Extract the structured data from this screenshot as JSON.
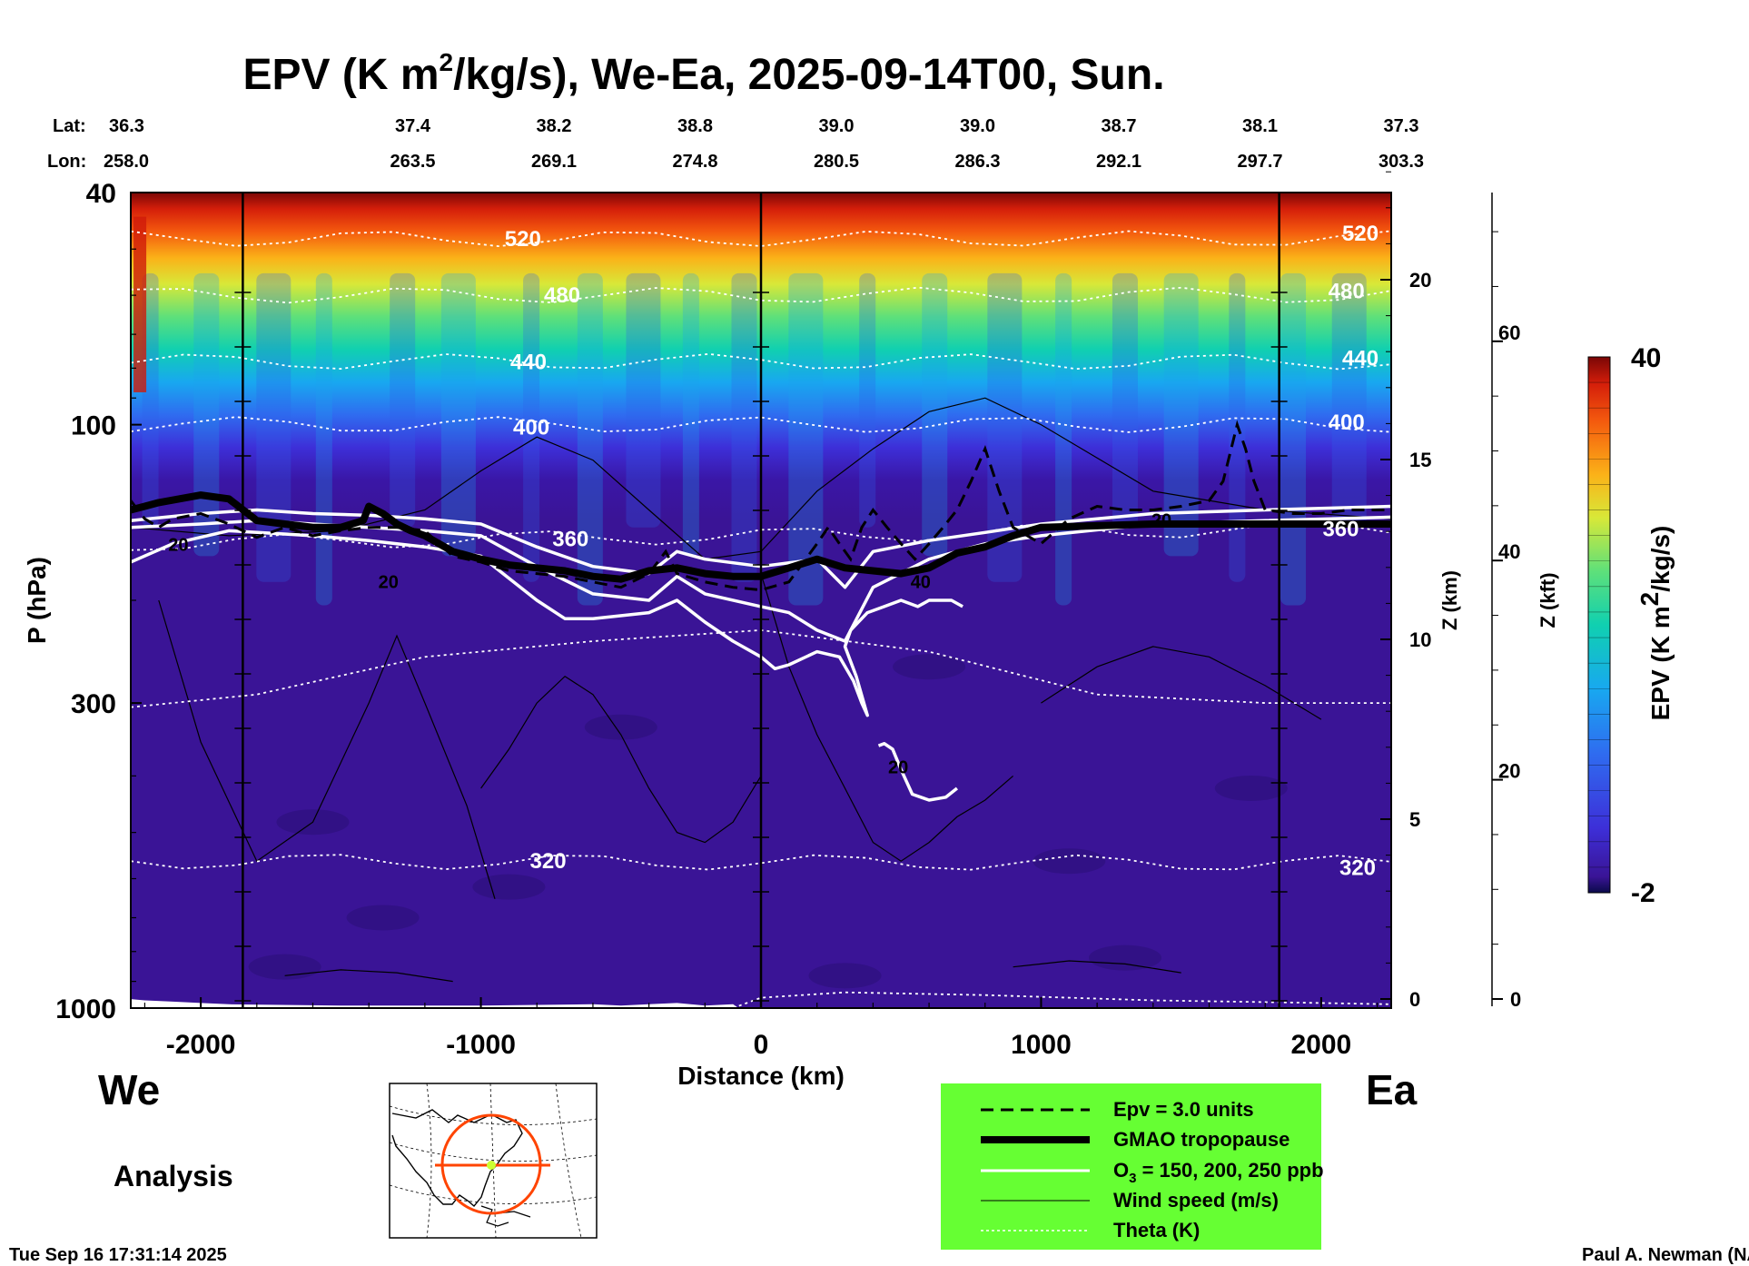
{
  "chart_data": {
    "type": "heatmap",
    "title": "EPV (K m",
    "title_sup": "2",
    "title_rest": "/kg/s), We-Ea, 2025-09-14T00, Sun.",
    "xlabel": "Distance (km)",
    "ylabel": "P (hPa)",
    "y2label": "Z (km)",
    "y3label": "Z (kft)",
    "xlim": [
      -2250,
      2250
    ],
    "ylim_hpa": [
      1000,
      40
    ],
    "x_ticks": [
      -2000,
      -1000,
      0,
      1000,
      2000
    ],
    "x_tick_labels": [
      "-2000",
      "-1000",
      "0",
      "1000",
      "2000"
    ],
    "y_ticks": [
      40,
      100,
      300,
      1000
    ],
    "y_tick_labels": [
      "40",
      "100",
      "300",
      "1000"
    ],
    "zkm_ticks": [
      0,
      5,
      10,
      15,
      20
    ],
    "zkm_tick_labels": [
      "0",
      "5",
      "10",
      "15",
      "20"
    ],
    "zkft_ticks": [
      0,
      20,
      40,
      60
    ],
    "zkft_tick_labels": [
      "0",
      "20",
      "40",
      "60"
    ],
    "lat_label": "Lat:",
    "lon_label": "Lon:",
    "lat": [
      "36.3",
      "37.4",
      "38.2",
      "38.8",
      "39.0",
      "39.0",
      "38.7",
      "38.1",
      "37.3"
    ],
    "lon": [
      "258.0",
      "263.5",
      "269.1",
      "274.8",
      "280.5",
      "286.3",
      "292.1",
      "297.7",
      "303.3"
    ],
    "colorbar": {
      "label": "EPV (K m",
      "label_sup": "2",
      "label_rest": "/kg/s)",
      "min": -2,
      "max": 40,
      "min_label": "-2",
      "max_label": "40"
    },
    "theta_contours": [
      {
        "value": 320,
        "label": "320",
        "p_west": 560,
        "p_east": 565
      },
      {
        "value": 360,
        "label": "360",
        "p_west": 160,
        "p_east": 150
      },
      {
        "value": 400,
        "label": "400",
        "p_west": 100,
        "p_east": 100
      },
      {
        "value": 440,
        "label": "440",
        "p_west": 78,
        "p_east": 78
      },
      {
        "value": 480,
        "label": "480",
        "p_west": 60,
        "p_east": 60
      },
      {
        "value": 520,
        "label": "520",
        "p_west": 48,
        "p_east": 48
      }
    ],
    "theta_labels": [
      {
        "text": "520",
        "x": -850,
        "p": 48
      },
      {
        "text": "480",
        "x": -710,
        "p": 60
      },
      {
        "text": "440",
        "x": -830,
        "p": 78
      },
      {
        "text": "400",
        "x": -820,
        "p": 101
      },
      {
        "text": "360",
        "x": -680,
        "p": 157
      },
      {
        "text": "320",
        "x": -760,
        "p": 560
      },
      {
        "text": "520",
        "x": 2140,
        "p": 47
      },
      {
        "text": "480",
        "x": 2090,
        "p": 59
      },
      {
        "text": "440",
        "x": 2140,
        "p": 77
      },
      {
        "text": "400",
        "x": 2090,
        "p": 99
      },
      {
        "text": "360",
        "x": 2070,
        "p": 151
      },
      {
        "text": "320",
        "x": 2130,
        "p": 575
      }
    ],
    "wind_labels": [
      {
        "text": "20",
        "x": -2080,
        "p": 160
      },
      {
        "text": "20",
        "x": -1330,
        "p": 185
      },
      {
        "text": "40",
        "x": 570,
        "p": 185
      },
      {
        "text": "20",
        "x": 1430,
        "p": 145
      },
      {
        "text": "20",
        "x": 490,
        "p": 385
      }
    ],
    "tropopause": {
      "x": [
        -2250,
        -2200,
        -2150,
        -2000,
        -1900,
        -1800,
        -1700,
        -1600,
        -1500,
        -1420,
        -1400,
        -1350,
        -1300,
        -1250,
        -1200,
        -1100,
        -1000,
        -900,
        -800,
        -700,
        -600,
        -500,
        -400,
        -300,
        -200,
        -100,
        0,
        100,
        200,
        300,
        400,
        500,
        600,
        700,
        800,
        900,
        1000,
        1200,
        1400,
        1600,
        1800,
        2000,
        2250
      ],
      "p": [
        140,
        138,
        136,
        132,
        134,
        146,
        148,
        150,
        150,
        146,
        138,
        142,
        148,
        152,
        155,
        165,
        170,
        174,
        176,
        178,
        182,
        184,
        178,
        176,
        180,
        182,
        182,
        176,
        170,
        176,
        178,
        180,
        176,
        166,
        162,
        155,
        150,
        149,
        148,
        148,
        148,
        148,
        148
      ]
    },
    "ozone_lines": [
      {
        "value": 150,
        "x": [
          -2250,
          -2000,
          -1800,
          -1600,
          -1400,
          -1200,
          -1000,
          -800,
          -600,
          -400,
          -300,
          -200,
          0,
          200,
          300,
          400,
          600,
          800,
          1000,
          1400,
          1800,
          2250
        ],
        "p": [
          146,
          142,
          140,
          142,
          143,
          145,
          148,
          162,
          175,
          180,
          165,
          170,
          175,
          170,
          190,
          165,
          158,
          153,
          148,
          142,
          140,
          138
        ]
      },
      {
        "value": 200,
        "x": [
          -2250,
          -2000,
          -1800,
          -1600,
          -1400,
          -1200,
          -1000,
          -800,
          -600,
          -400,
          -300,
          -200,
          0,
          100,
          200,
          300,
          400,
          600,
          800,
          1000,
          1400,
          1800,
          2250
        ],
        "p": [
          150,
          148,
          146,
          148,
          150,
          152,
          155,
          175,
          195,
          200,
          182,
          195,
          205,
          210,
          225,
          235,
          190,
          170,
          160,
          155,
          148,
          146,
          144
        ]
      },
      {
        "value": 250,
        "x": [
          -2250,
          -2100,
          -1900,
          -1600,
          -1400,
          -1200,
          -1000,
          -800,
          -700,
          -600,
          -400,
          -300,
          -200,
          -100,
          0,
          50,
          100,
          200,
          280,
          330,
          360,
          380,
          340,
          300,
          320,
          380,
          440,
          500,
          560,
          600,
          680,
          720
        ],
        "p": [
          172,
          160,
          152,
          155,
          158,
          162,
          168,
          200,
          215,
          215,
          210,
          200,
          218,
          235,
          250,
          262,
          258,
          245,
          250,
          275,
          300,
          315,
          270,
          240,
          225,
          210,
          205,
          200,
          205,
          200,
          200,
          205
        ]
      },
      {
        "value": 250,
        "x": [
          420,
          440,
          470,
          500,
          540,
          600,
          660,
          700
        ],
        "p": [
          355,
          352,
          360,
          390,
          430,
          440,
          435,
          420
        ]
      }
    ],
    "epv3_line": {
      "x": [
        -2250,
        -2200,
        -2150,
        -2100,
        -2000,
        -1900,
        -1800,
        -1700,
        -1600,
        -1500,
        -1400,
        -1300,
        -1200,
        -1100,
        -1000,
        -900,
        -800,
        -700,
        -600,
        -500,
        -400,
        -340,
        -300,
        -200,
        -100,
        0,
        100,
        200,
        240,
        280,
        320,
        360,
        400,
        450,
        500,
        550,
        600,
        650,
        700,
        750,
        800,
        850,
        900,
        1000,
        1100,
        1200,
        1300,
        1400,
        1500,
        1600,
        1650,
        1700,
        1730,
        1760,
        1800,
        1900,
        2000,
        2100,
        2250
      ],
      "p": [
        135,
        145,
        150,
        145,
        142,
        148,
        156,
        150,
        155,
        152,
        150,
        150,
        152,
        168,
        172,
        178,
        180,
        182,
        186,
        190,
        180,
        165,
        180,
        186,
        190,
        192,
        186,
        160,
        150,
        160,
        170,
        150,
        140,
        150,
        160,
        170,
        160,
        150,
        140,
        125,
        110,
        130,
        150,
        160,
        145,
        138,
        140,
        140,
        138,
        135,
        125,
        100,
        110,
        125,
        140,
        142,
        142,
        140,
        140
      ]
    },
    "legend": [
      {
        "style": "dashed",
        "label": "Epv = 3.0 units"
      },
      {
        "style": "thick",
        "label": "GMAO tropopause"
      },
      {
        "style": "white",
        "label": "O",
        "label_sub": "3",
        "label_rest": " = 150, 200, 250 ppb"
      },
      {
        "style": "thin",
        "label": "Wind speed (m/s)"
      },
      {
        "style": "dotted",
        "label": "Theta (K)"
      }
    ]
  },
  "footer": {
    "left_direction": "We",
    "right_direction": "Ea",
    "mode": "Analysis",
    "timestamp": "Tue Sep 16 17:31:14 2025",
    "credit": "Paul A. Newman (NASA"
  },
  "colors": {
    "legend_bg": "#66ff33",
    "map_circle": "#ff4400",
    "map_marker": "#ccff33"
  }
}
